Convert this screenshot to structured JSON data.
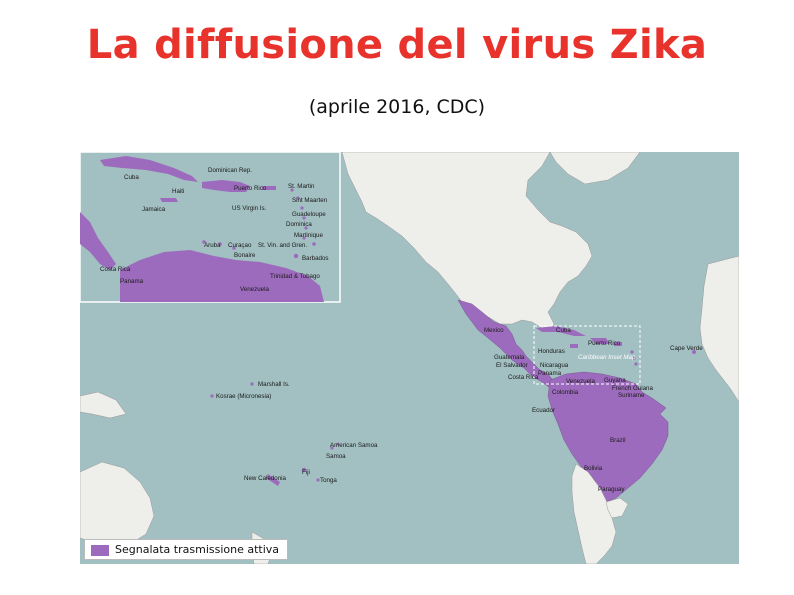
{
  "title": "La diffusione del virus Zika",
  "subtitle": "(aprile 2016, CDC)",
  "colors": {
    "title": "#e8322c",
    "ocean": "#a2bfc1",
    "land": "#eeeeea",
    "inset_land": "#cfe0e0",
    "active_transmission": "#9d6bbd"
  },
  "inset_labels": {
    "cuba": "Cuba",
    "haiti": "Haiti",
    "dominican_rep": "Dominican Rep.",
    "puerto_rico": "Puerto Rico",
    "st_martin": "St. Martin",
    "sint_maarten": "Sint Maarten",
    "jamaica": "Jamaica",
    "us_virgin": "US Virgin Is.",
    "guadeloupe": "Guadeloupe",
    "dominica": "Dominica",
    "martinique": "Martinique",
    "aruba": "Aruba",
    "curacao": "Curaçao",
    "st_vin": "St. Vin. and Gren.",
    "bonaire": "Bonaire",
    "barbados": "Barbados",
    "costa_rica": "Costa Rica",
    "trinidad": "Trinidad & Tobago",
    "panama": "Panama",
    "venezuela": "Venezuela"
  },
  "main_labels": {
    "mexico": "Mexico",
    "cuba": "Cuba",
    "puerto_rico": "Puerto Rico",
    "honduras": "Honduras",
    "caribbean_inset_map": "Caribbean Inset Map",
    "guatemala": "Guatemala",
    "nicaragua": "Nicaragua",
    "el_salvador": "El Salvador",
    "panama": "Panama",
    "costa_rica": "Costa Rica",
    "venezuela": "Venezuela",
    "guyana": "Guyana",
    "french_guiana": "French Guiana",
    "suriname": "Suriname",
    "colombia": "Colombia",
    "cape_verde": "Cape Verde",
    "ecuador": "Ecuador",
    "brazil": "Brazil",
    "bolivia": "Bolivia",
    "paraguay": "Paraguay",
    "marshall": "Marshall Is.",
    "kosrae": "Kosrae (Micronesia)",
    "american_samoa": "American Samoa",
    "samoa": "Samoa",
    "fiji": "Fiji",
    "tonga": "Tonga",
    "new_caledonia": "New Caledonia"
  },
  "legend": {
    "label": "Segnalata trasmissione attiva"
  }
}
